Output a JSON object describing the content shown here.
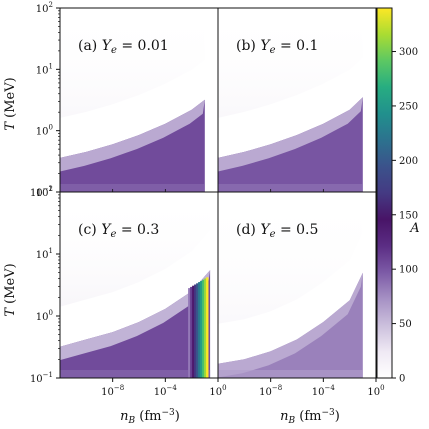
{
  "chart_data": {
    "type": "heatmap",
    "x_axis": {
      "label": "n_B (fm^-3)",
      "scale": "log",
      "range": [
        1e-12,
        1.0
      ],
      "ticks": [
        {
          "value": 1e-08,
          "label": "10^-8"
        },
        {
          "value": 0.0001,
          "label": "10^-4"
        },
        {
          "value": 1,
          "label": "10^0"
        }
      ]
    },
    "y_axis": {
      "label": "T (MeV)",
      "scale": "log",
      "range": [
        0.1,
        100
      ],
      "ticks": [
        {
          "value": 0.1,
          "label": "10^-1"
        },
        {
          "value": 1,
          "label": "10^0"
        },
        {
          "value": 10,
          "label": "10^1"
        },
        {
          "value": 100,
          "label": "10^2"
        }
      ]
    },
    "colorbar": {
      "label": "A",
      "range": [
        0,
        340
      ],
      "ticks": [
        0,
        50,
        100,
        150,
        200,
        250,
        300
      ],
      "colormap": [
        "#ffffff",
        "#efe9f4",
        "#cbbfdc",
        "#a691c4",
        "#7c5aa6",
        "#5b2d84",
        "#481467",
        "#443a83",
        "#3b528b",
        "#2c728e",
        "#21908d",
        "#27ad81",
        "#5cc863",
        "#aadc32",
        "#fde725"
      ]
    },
    "panels": [
      {
        "id": "a",
        "prefix": "(a)",
        "ye_label": "Y_e",
        "ye_value": "0.01",
        "boundary_T": [
          0.36,
          0.45,
          0.6,
          0.85,
          1.3,
          2.2,
          3.2
        ],
        "nb_max_log": -1.0,
        "inner_A": 105,
        "outer_A": 60,
        "peak_A": 70,
        "haze_strength": 0.15
      },
      {
        "id": "b",
        "prefix": "(b)",
        "ye_label": "Y_e",
        "ye_value": "0.1",
        "boundary_T": [
          0.36,
          0.45,
          0.6,
          0.85,
          1.3,
          2.2,
          3.5
        ],
        "nb_max_log": -1.0,
        "inner_A": 100,
        "outer_A": 60,
        "peak_A": 70,
        "haze_strength": 0.15
      },
      {
        "id": "c",
        "prefix": "(c)",
        "ye_label": "Y_e",
        "ye_value": "0.3",
        "boundary_T": [
          0.32,
          0.42,
          0.55,
          0.8,
          1.3,
          2.5,
          5.5
        ],
        "nb_max_log": -0.6,
        "inner_A": 105,
        "outer_A": 55,
        "peak_A": 340,
        "haze_strength": 0.18
      },
      {
        "id": "d",
        "prefix": "(d)",
        "ye_label": "Y_e",
        "ye_value": "0.5",
        "boundary_T": [
          0.17,
          0.2,
          0.27,
          0.42,
          0.8,
          1.8,
          5.0
        ],
        "nb_max_log": -1.0,
        "inner_A": 80,
        "outer_A": 60,
        "peak_A": 70,
        "haze_strength": 0.12
      }
    ],
    "boundary_nb_log": [
      -12,
      -10,
      -8,
      -6,
      -4,
      -2,
      -1
    ],
    "grid": false,
    "legend": "colorbar-right"
  }
}
